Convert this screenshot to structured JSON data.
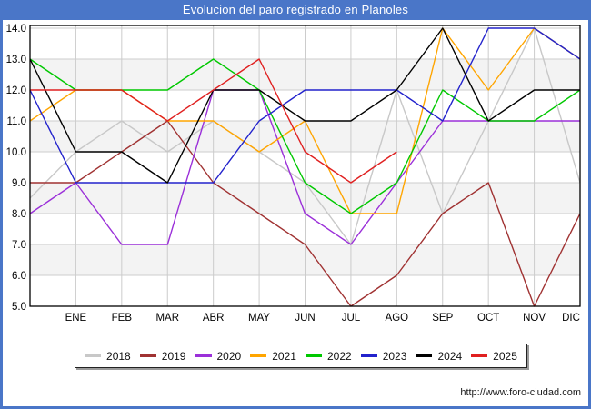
{
  "header": {
    "title": "Evolucion del paro registrado en Planoles"
  },
  "footer": {
    "url": "http://www.foro-ciudad.com"
  },
  "chart_data": {
    "type": "line",
    "title": "Evolucion del paro registrado en Planoles",
    "xlabel": "",
    "ylabel": "",
    "ylim": [
      5,
      14
    ],
    "grid": true,
    "legend_position": "bottom",
    "y_ticks": [
      "14.0",
      "13.0",
      "12.0",
      "11.0",
      "10.0",
      "9.0",
      "8.0",
      "7.0",
      "6.0",
      "5.0"
    ],
    "categories": [
      "ENE",
      "FEB",
      "MAR",
      "ABR",
      "MAY",
      "JUN",
      "JUL",
      "AGO",
      "SEP",
      "OCT",
      "NOV",
      "DIC"
    ],
    "series": [
      {
        "name": "2018",
        "color": "#c8c8c8",
        "edge_start": 8.5,
        "values": [
          10,
          11,
          10,
          11,
          10,
          9,
          7,
          12,
          8,
          11,
          14,
          9
        ]
      },
      {
        "name": "2019",
        "color": "#a03232",
        "edge_start": 9,
        "values": [
          9,
          10,
          11,
          9,
          8,
          7,
          5,
          6,
          8,
          9,
          5,
          8
        ]
      },
      {
        "name": "2020",
        "color": "#9b30d9",
        "edge_start": 8,
        "values": [
          9,
          7,
          7,
          12,
          12,
          8,
          7,
          9,
          11,
          11,
          11,
          11
        ]
      },
      {
        "name": "2021",
        "color": "#ffa500",
        "edge_start": 11,
        "values": [
          12,
          12,
          11,
          11,
          10,
          11,
          8,
          8,
          14,
          12,
          14,
          13
        ]
      },
      {
        "name": "2022",
        "color": "#00c800",
        "edge_start": 13,
        "values": [
          12,
          12,
          12,
          13,
          12,
          9,
          8,
          9,
          12,
          11,
          11,
          12
        ]
      },
      {
        "name": "2023",
        "color": "#2222cc",
        "edge_start": 12,
        "values": [
          9,
          9,
          9,
          9,
          11,
          12,
          12,
          12,
          11,
          14,
          14,
          13
        ]
      },
      {
        "name": "2024",
        "color": "#000000",
        "edge_start": 13,
        "values": [
          10,
          10,
          9,
          12,
          12,
          11,
          11,
          12,
          14,
          11,
          12,
          12
        ]
      },
      {
        "name": "2025",
        "color": "#e02020",
        "edge_start": 12,
        "values": [
          12,
          12,
          11,
          12,
          13,
          10,
          9,
          10,
          null,
          null,
          null,
          null
        ]
      }
    ]
  }
}
